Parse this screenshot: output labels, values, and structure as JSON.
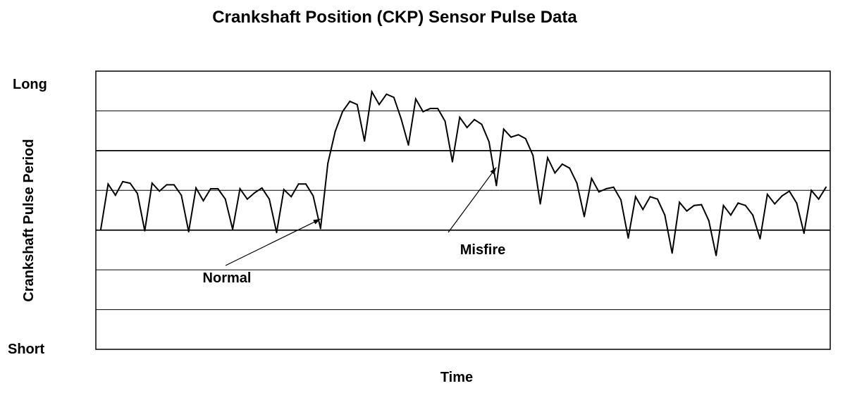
{
  "chart_data": {
    "type": "line",
    "title": "Crankshaft Position (CKP) Sensor Pulse Data",
    "xlabel": "Time",
    "ylabel": "Crankshaft Pulse Period",
    "y_top_label": "Long",
    "y_bottom_label": "Short",
    "ylim": [
      0,
      7
    ],
    "grid": true,
    "legend": "none",
    "line_color": "#000000",
    "annotations": [
      {
        "text": "Normal",
        "target_x": 30,
        "target_y": 3.28
      },
      {
        "text": "Misfire",
        "target_x": 54,
        "target_y": 4.58
      }
    ],
    "series": [
      {
        "values": [
          3.02,
          4.16,
          3.88,
          4.22,
          4.18,
          3.92,
          2.98,
          4.18,
          3.98,
          4.14,
          4.14,
          3.88,
          2.96,
          4.06,
          3.74,
          4.04,
          4.04,
          3.78,
          3.02,
          4.04,
          3.78,
          3.94,
          4.06,
          3.78,
          2.94,
          4.02,
          3.84,
          4.16,
          4.16,
          3.86,
          3.04,
          4.68,
          5.48,
          5.98,
          6.24,
          6.16,
          5.24,
          6.48,
          6.16,
          6.42,
          6.34,
          5.8,
          5.14,
          6.3,
          5.98,
          6.06,
          6.06,
          5.74,
          4.72,
          5.84,
          5.58,
          5.78,
          5.66,
          5.22,
          4.12,
          5.54,
          5.34,
          5.4,
          5.3,
          4.88,
          3.66,
          4.82,
          4.44,
          4.66,
          4.56,
          4.18,
          3.34,
          4.3,
          3.96,
          4.04,
          4.08,
          3.76,
          2.8,
          3.84,
          3.52,
          3.84,
          3.78,
          3.38,
          2.42,
          3.7,
          3.48,
          3.62,
          3.64,
          3.24,
          2.36,
          3.62,
          3.38,
          3.68,
          3.62,
          3.38,
          2.78,
          3.9,
          3.66,
          3.86,
          3.98,
          3.68,
          2.92,
          4.0,
          3.78,
          4.08
        ]
      }
    ]
  }
}
